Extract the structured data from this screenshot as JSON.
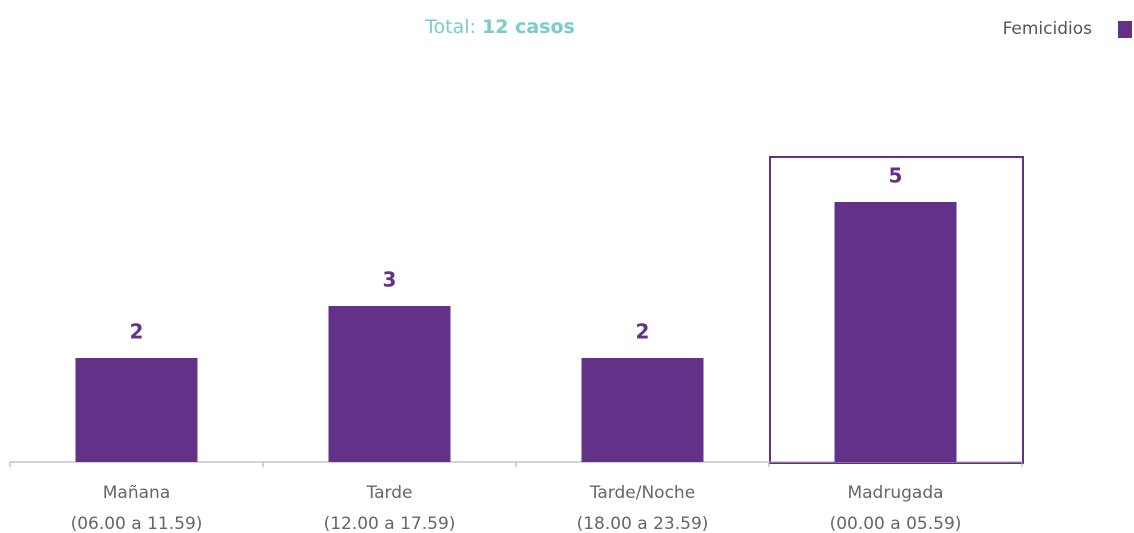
{
  "chart_data": {
    "type": "bar",
    "title": "Total:",
    "title_emphasis": "12 casos",
    "categories": [
      "Mañana",
      "Tarde",
      "Tarde/Noche",
      "Madrugada"
    ],
    "category_ranges": [
      "(06.00 a 11.59)",
      "(12.00 a 17.59)",
      "(18.00 a 23.59)",
      "(00.00 a 05.59)"
    ],
    "series": [
      {
        "name": "Femicidios",
        "color": "#633188",
        "values": [
          2,
          3,
          2,
          5
        ]
      }
    ],
    "ylim": [
      0,
      5
    ],
    "highlight": 3,
    "legend": "top-right"
  }
}
